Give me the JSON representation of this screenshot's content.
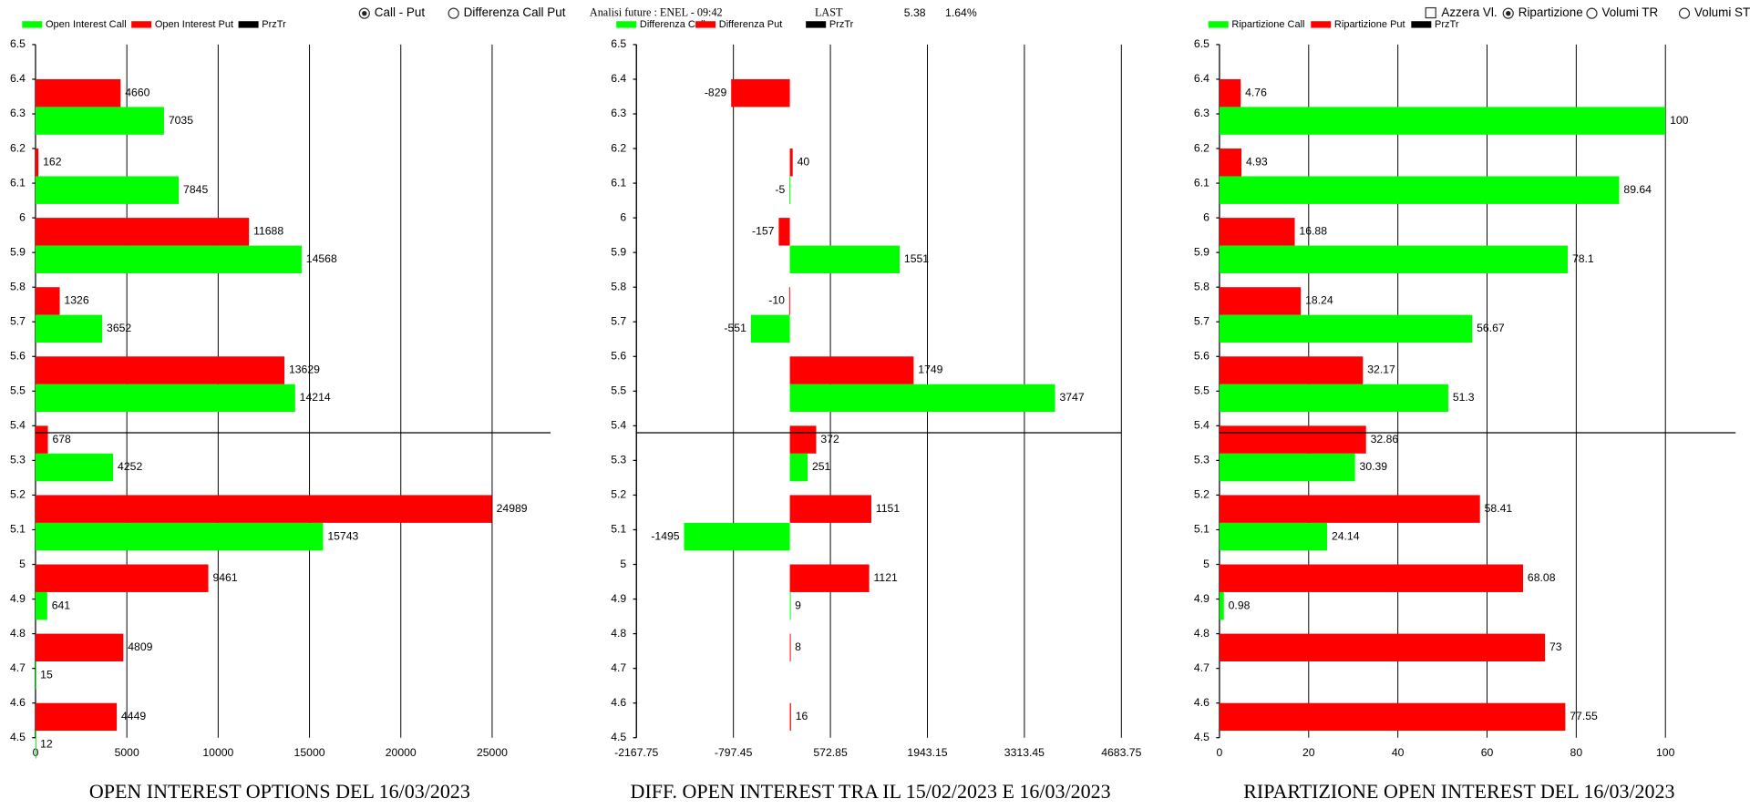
{
  "header": {
    "radio_call_put": {
      "label": "Call - Put",
      "checked": true
    },
    "radio_diff": {
      "label": "Differenza Call Put",
      "checked": false
    },
    "info": "Analisi future : ENEL - 09:42",
    "last_label": "LAST",
    "last": 5.38,
    "change": "1.64%",
    "check_azzera": {
      "label": "Azzera Vl.",
      "checked": false
    },
    "radio_ripartizione": {
      "label": "Ripartizione",
      "checked": true
    },
    "radio_volumi_tr": {
      "label": "Volumi TR",
      "checked": false
    },
    "radio_volumi_st": {
      "label": "Volumi ST",
      "checked": false
    }
  },
  "chart_data": [
    {
      "type": "bar",
      "orientation": "horizontal",
      "title": "OPEN INTEREST OPTIONS DEL 16/03/2023",
      "y": [
        6.4,
        6.2,
        6,
        5.8,
        5.6,
        5.4,
        5.2,
        5,
        4.8,
        4.6
      ],
      "series": [
        {
          "name": "Open Interest Call",
          "color": "#00ff00",
          "values": [
            7035,
            7845,
            14568,
            3652,
            14214,
            4252,
            15743,
            641,
            15,
            12
          ]
        },
        {
          "name": "Open Interest Put",
          "color": "#ff0000",
          "values": [
            4660,
            162,
            11688,
            1326,
            13629,
            678,
            24989,
            9461,
            4809,
            4449
          ]
        },
        {
          "name": "PrzTr",
          "color": "#000000"
        }
      ],
      "xlim": [
        0,
        28200
      ],
      "xticks": [
        0,
        5000,
        10000,
        15000,
        20000,
        25000
      ],
      "ylim": [
        4.5,
        6.5
      ],
      "yticks": [
        4.5,
        4.6,
        4.7,
        4.8,
        4.9,
        5,
        5.1,
        5.2,
        5.3,
        5.4,
        5.5,
        5.6,
        5.7,
        5.8,
        5.9,
        6,
        6.1,
        6.2,
        6.3,
        6.4,
        6.5
      ],
      "grid": true
    },
    {
      "type": "bar",
      "orientation": "horizontal",
      "title": "DIFF. OPEN INTEREST TRA IL 15/02/2023 E 16/03/2023",
      "y": [
        6.4,
        6.2,
        6,
        5.8,
        5.6,
        5.4,
        5.2,
        5,
        4.8,
        4.6
      ],
      "series": [
        {
          "name": "Differenza Call",
          "color": "#00ff00",
          "values": [
            null,
            -5,
            1551,
            -551,
            3747,
            251,
            -1495,
            9,
            null,
            null
          ]
        },
        {
          "name": "Differenza Put",
          "color": "#ff0000",
          "values": [
            -829,
            40,
            -157,
            -10,
            1749,
            372,
            1151,
            1121,
            8,
            16
          ]
        },
        {
          "name": "PrzTr",
          "color": "#000000"
        }
      ],
      "xlim": [
        -2167.75,
        4683.75
      ],
      "xticks": [
        -2167.75,
        -797.45,
        572.85,
        1943.15,
        3313.45,
        4683.75
      ],
      "ylim": [
        4.5,
        6.5
      ],
      "yticks": [
        4.5,
        4.6,
        4.7,
        4.8,
        4.9,
        5,
        5.1,
        5.2,
        5.3,
        5.4,
        5.5,
        5.6,
        5.7,
        5.8,
        5.9,
        6,
        6.1,
        6.2,
        6.3,
        6.4,
        6.5
      ],
      "grid": true
    },
    {
      "type": "bar",
      "orientation": "horizontal",
      "title": "RIPARTIZIONE OPEN INTEREST DEL 16/03/2023",
      "y": [
        6.4,
        6.2,
        6,
        5.8,
        5.6,
        5.4,
        5.2,
        5,
        4.8,
        4.6
      ],
      "series": [
        {
          "name": "Ripartizione Call",
          "color": "#00ff00",
          "values": [
            100,
            89.64,
            78.1,
            56.67,
            51.3,
            30.39,
            24.14,
            0.98,
            null,
            null
          ]
        },
        {
          "name": "Ripartizione Put",
          "color": "#ff0000",
          "values": [
            4.76,
            4.93,
            16.88,
            18.24,
            32.17,
            32.86,
            58.41,
            68.08,
            73,
            77.55
          ]
        },
        {
          "name": "PrzTr",
          "color": "#000000"
        }
      ],
      "xlim": [
        0,
        115.75
      ],
      "xticks": [
        0,
        20,
        40,
        60,
        80,
        100
      ],
      "ylim": [
        4.5,
        6.5
      ],
      "yticks": [
        4.5,
        4.6,
        4.7,
        4.8,
        4.9,
        5,
        5.1,
        5.2,
        5.3,
        5.4,
        5.5,
        5.6,
        5.7,
        5.8,
        5.9,
        6,
        6.1,
        6.2,
        6.3,
        6.4,
        6.5
      ],
      "grid": true
    }
  ]
}
